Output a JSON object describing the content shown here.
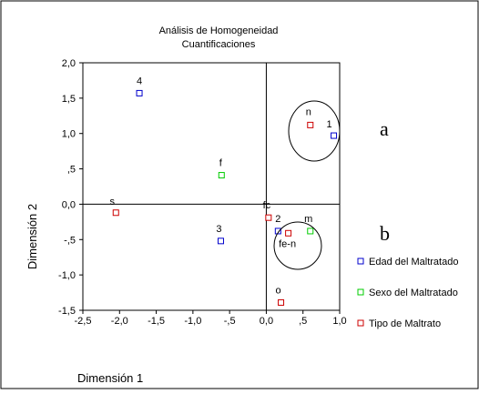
{
  "chart_data": {
    "type": "scatter",
    "title": "Análisis de Homogeneidad",
    "subtitle": "Cuantificaciones",
    "xlabel": "Dimensión 1",
    "ylabel": "Dimensión 2",
    "xlim": [
      -2.5,
      1.0
    ],
    "ylim": [
      -1.5,
      2.0
    ],
    "x_ticks": [
      "-2,5",
      "-2,0",
      "-1,5",
      "-1,0",
      "-,5",
      "0,0",
      ",5",
      "1,0"
    ],
    "y_ticks": [
      "2,0",
      "1,5",
      "1,0",
      ",5",
      "0,0",
      "-,5",
      "-1,0",
      "-1,5"
    ],
    "reference_lines": {
      "x": 0,
      "y": 0
    },
    "legend_position": "right",
    "series": [
      {
        "name": "Edad del Maltratado",
        "color": "#0000cc",
        "points": [
          {
            "label": "4",
            "x": -1.73,
            "y": 1.57
          },
          {
            "label": "1",
            "x": 0.92,
            "y": 0.97
          },
          {
            "label": "3",
            "x": -0.62,
            "y": -0.52
          },
          {
            "label": "2",
            "x": 0.16,
            "y": -0.38
          }
        ]
      },
      {
        "name": "Sexo del Maltratado",
        "color": "#00cc00",
        "points": [
          {
            "label": "f",
            "x": -0.61,
            "y": 0.41
          },
          {
            "label": "m",
            "x": 0.6,
            "y": -0.38
          }
        ]
      },
      {
        "name": "Tipo de Maltrato",
        "color": "#cc0000",
        "points": [
          {
            "label": "s",
            "x": -2.05,
            "y": -0.12
          },
          {
            "label": "n",
            "x": 0.6,
            "y": 1.12
          },
          {
            "label": "fc",
            "x": 0.03,
            "y": -0.19
          },
          {
            "label": "fe-n",
            "x": 0.3,
            "y": -0.41
          },
          {
            "label": "o",
            "x": 0.2,
            "y": -1.39
          }
        ]
      }
    ],
    "annotations": [
      {
        "text": "a",
        "group_center": [
          0.75,
          1.1
        ]
      },
      {
        "text": "b",
        "group_center": [
          0.35,
          -0.38
        ]
      }
    ]
  }
}
